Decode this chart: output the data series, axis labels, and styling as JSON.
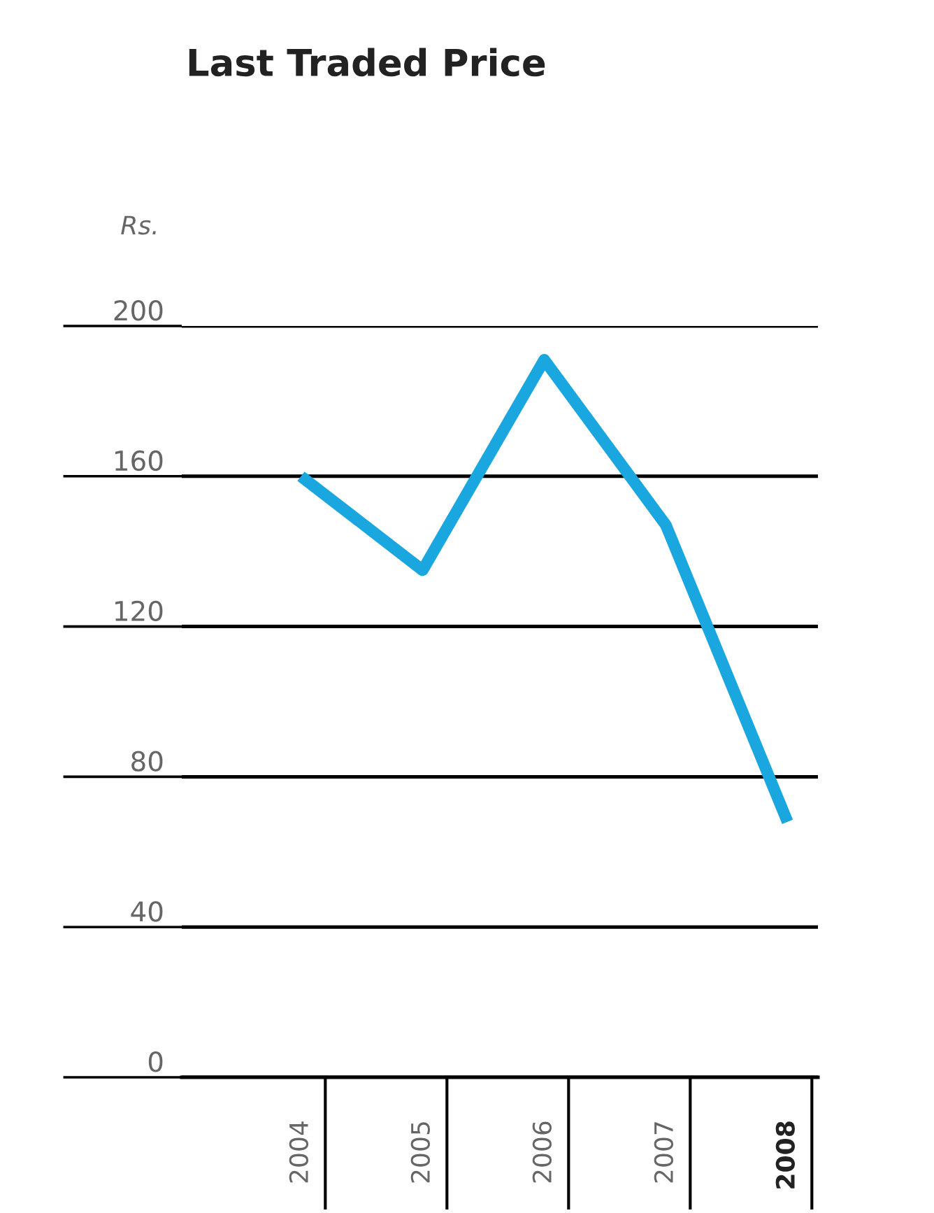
{
  "chart_data": {
    "type": "line",
    "title": "Last Traded Price",
    "ylabel": "Rs.",
    "categories": [
      "2004",
      "2005",
      "2006",
      "2007",
      "2008"
    ],
    "series": [
      {
        "color": "#1aa7e0",
        "values": [
          160,
          135,
          191,
          147,
          68
        ]
      }
    ],
    "ylim": [
      0,
      200
    ],
    "yticks": [
      0,
      40,
      80,
      120,
      160,
      200
    ],
    "grid": "y",
    "marker": "none",
    "line_style": "solid"
  }
}
